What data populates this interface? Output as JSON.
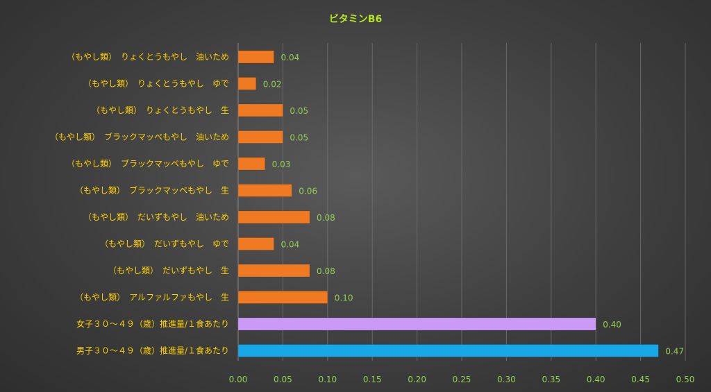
{
  "chart_data": {
    "type": "bar",
    "orientation": "horizontal",
    "title": "ビタミンB6",
    "xlabel": "",
    "ylabel": "",
    "xlim": [
      0,
      0.5
    ],
    "ticks": [
      "0.00",
      "0.05",
      "0.10",
      "0.15",
      "0.20",
      "0.25",
      "0.30",
      "0.35",
      "0.40",
      "0.45",
      "0.50"
    ],
    "grid": true,
    "legend": "none",
    "colors": {
      "food": "#f07a22",
      "female_reference": "#c99bf5",
      "male_reference": "#18a8e6",
      "title": "#b5e61d",
      "category_text": "#ffd200",
      "value_text": "#92d050"
    },
    "categories": [
      "（もやし類）　りょくとうもやし　油いため",
      "（もやし類）　りょくとうもやし　ゆで",
      "（もやし類）　りょくとうもやし　生",
      "（もやし類）　ブラックマッペもやし　油いため",
      "（もやし類）　ブラックマッペもやし　ゆで",
      "（もやし類）　ブラックマッペもやし　生",
      "（もやし類）　だいずもやし　油いため",
      "（もやし類）　だいずもやし　ゆで",
      "（もやし類）　だいずもやし　生",
      "（もやし類）　アルファルファもやし　生",
      "女子３０～４９（歳）推進量/１食あたり",
      "男子３０～４９（歳）推進量/１食あたり"
    ],
    "values": [
      0.04,
      0.02,
      0.05,
      0.05,
      0.03,
      0.06,
      0.08,
      0.04,
      0.08,
      0.1,
      0.4,
      0.47
    ],
    "labels": [
      "0.04",
      "0.02",
      "0.05",
      "0.05",
      "0.03",
      "0.06",
      "0.08",
      "0.04",
      "0.08",
      "0.10",
      "0.40",
      "0.47"
    ],
    "bar_colors": [
      "food",
      "food",
      "food",
      "food",
      "food",
      "food",
      "food",
      "food",
      "food",
      "food",
      "female_reference",
      "male_reference"
    ]
  }
}
